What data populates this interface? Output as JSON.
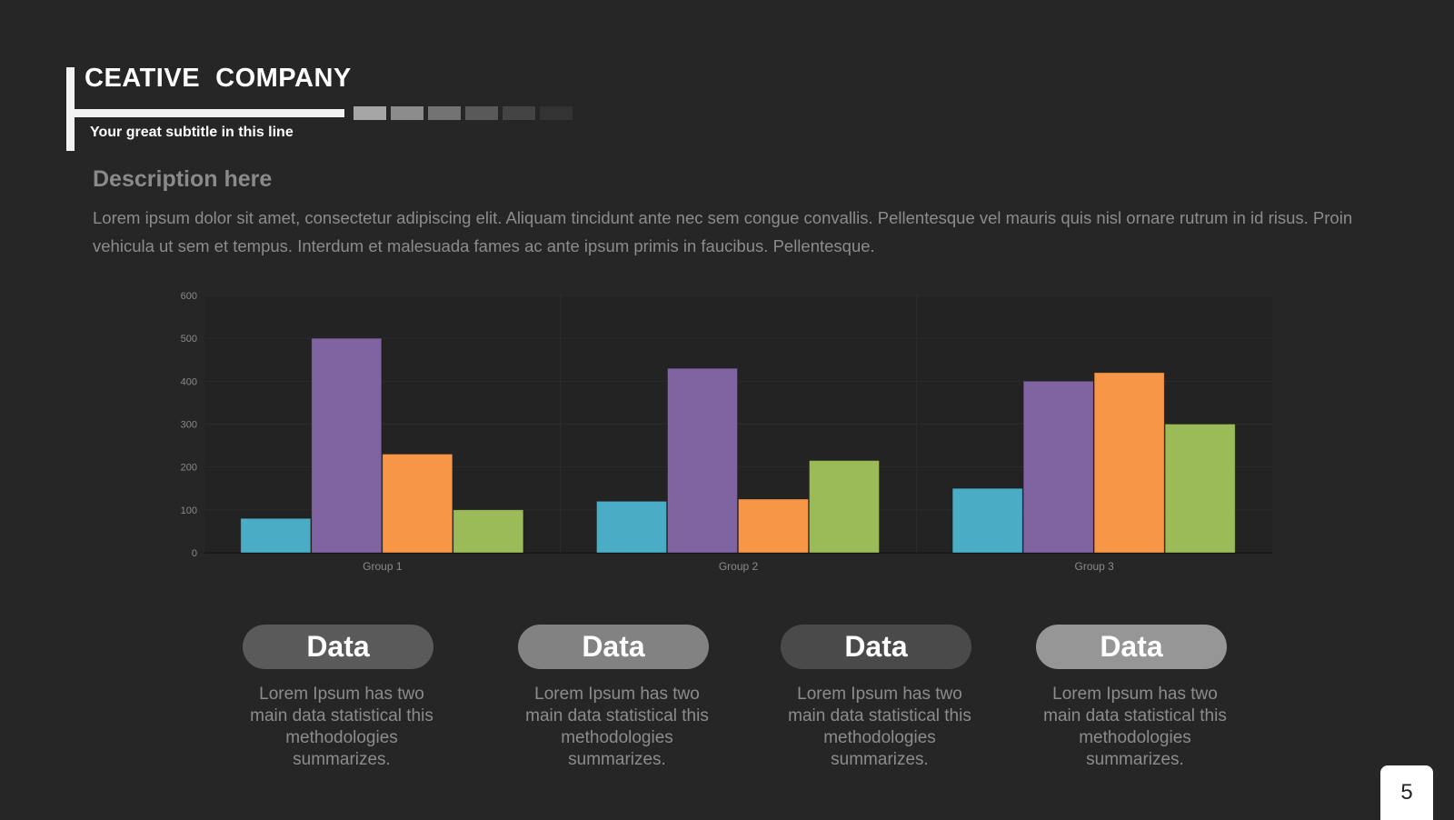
{
  "header": {
    "title": "CEATIVE  COMPANY",
    "subtitle": "Your great subtitle in this line",
    "accent_squares": [
      "#a6a6a6",
      "#8c8c8c",
      "#737373",
      "#595959",
      "#444444",
      "#333333"
    ]
  },
  "description": {
    "heading": "Description here",
    "body": "Lorem ipsum dolor sit amet, consectetur adipiscing elit. Aliquam tincidunt ante nec sem congue convallis. Pellentesque vel mauris quis nisl ornare rutrum in id risus. Proin vehicula ut sem et tempus. Interdum et malesuada fames ac ante ipsum primis in faucibus. Pellentesque."
  },
  "chart_data": {
    "type": "bar",
    "categories": [
      "Group 1",
      "Group 2",
      "Group 3"
    ],
    "series": [
      {
        "values": [
          80,
          120,
          150
        ],
        "color": "#4bacc6"
      },
      {
        "values": [
          500,
          430,
          400
        ],
        "color": "#8064a2"
      },
      {
        "values": [
          230,
          125,
          420
        ],
        "color": "#f79646"
      },
      {
        "values": [
          100,
          215,
          300
        ],
        "color": "#9bbb59"
      }
    ],
    "yticks": [
      0,
      100,
      200,
      300,
      400,
      500,
      600
    ],
    "ylim": [
      0,
      600
    ],
    "grid": true
  },
  "cards": [
    {
      "label": "Data",
      "text": "Lorem Ipsum has two main data statistical this methodologies summarizes.",
      "color": "#5a5a5a"
    },
    {
      "label": "Data",
      "text": "Lorem Ipsum has two main data statistical this methodologies summarizes.",
      "color": "#828282"
    },
    {
      "label": "Data",
      "text": "Lorem Ipsum has two main data statistical this methodologies summarizes.",
      "color": "#4a4a4a"
    },
    {
      "label": "Data",
      "text": "Lorem Ipsum has two main data statistical this methodologies summarizes.",
      "color": "#969696"
    }
  ],
  "page_number": "5"
}
